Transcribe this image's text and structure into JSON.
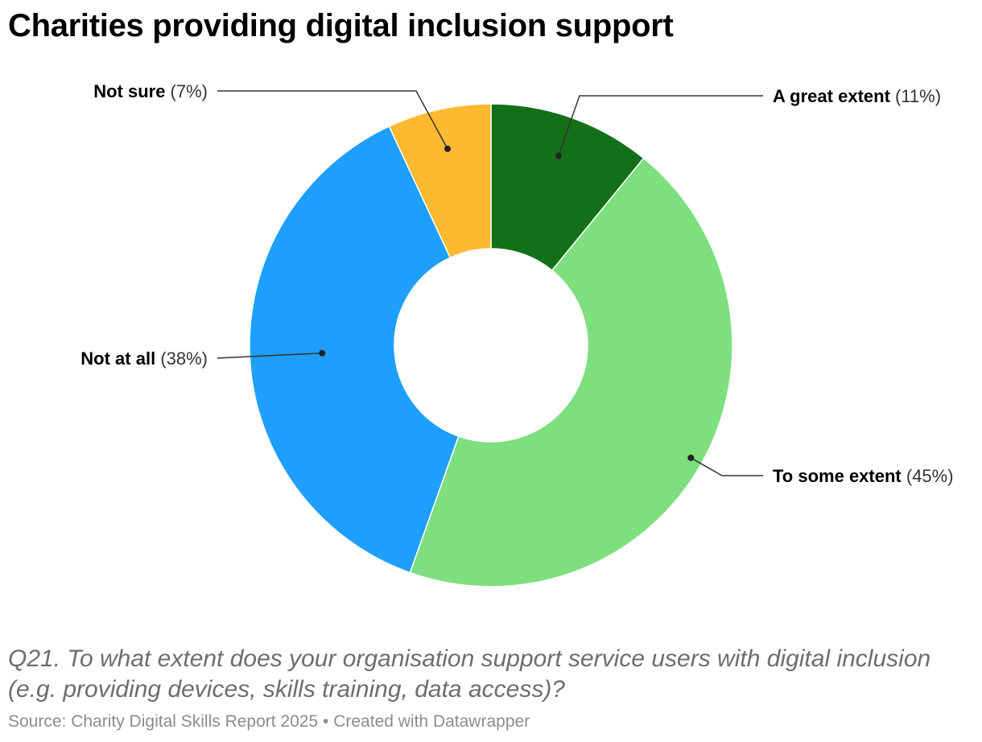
{
  "header": {
    "title": "Charities providing digital inclusion support"
  },
  "footer": {
    "description": "Q21. To what extent does your organisation support service users with digital inclusion (e.g. providing devices, skills training, data access)?",
    "source": "Source: Charity Digital Skills Report 2025",
    "separator": "•",
    "credit": "Created with Datawrapper"
  },
  "chart_data": {
    "type": "pie",
    "variant": "donut",
    "title": "Charities providing digital inclusion support",
    "start": "12 o'clock",
    "direction": "clockwise",
    "slices": [
      {
        "label": "A great extent",
        "display": "(11%)",
        "value": 11,
        "color": "#147018"
      },
      {
        "label": "To some extent",
        "display": "(45%)",
        "value": 45,
        "color": "#7edf7f"
      },
      {
        "label": "Not at all",
        "display": "(38%)",
        "value": 38,
        "color": "#1e9ffe"
      },
      {
        "label": "Not sure",
        "display": "(7%)",
        "value": 7,
        "color": "#fdb92f"
      }
    ],
    "legend": "none",
    "label_style": "leader lines"
  }
}
